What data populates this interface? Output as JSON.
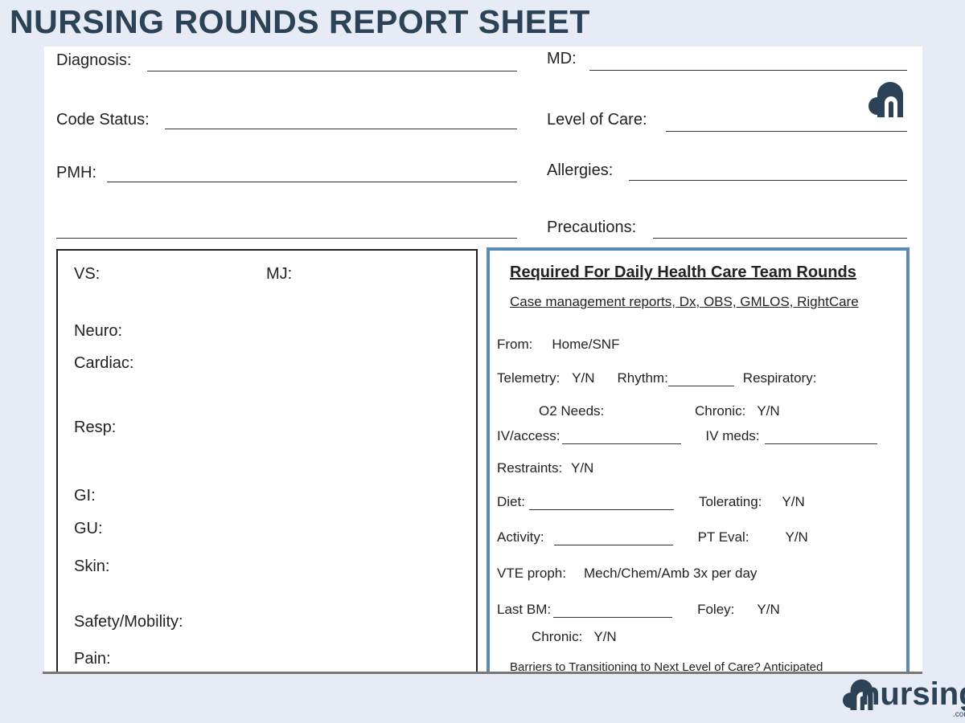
{
  "title": "NURSING ROUNDS REPORT SHEET",
  "header_fields": {
    "diagnosis": "Diagnosis:",
    "md": "MD:",
    "code_status": "Code Status:",
    "level_of_care": "Level of Care:",
    "pmh": "PMH:",
    "allergies": "Allergies:",
    "precautions": "Precautions:"
  },
  "assessment": {
    "vs": "VS:",
    "mj": "MJ:",
    "neuro": "Neuro:",
    "cardiac": "Cardiac:",
    "resp": "Resp:",
    "gi": "GI:",
    "gu": "GU:",
    "skin": "Skin:",
    "safety": "Safety/Mobility:",
    "pain": "Pain:"
  },
  "rounds": {
    "heading": "Required For Daily Health Care Team Rounds",
    "subheading": "Case management reports, Dx, OBS, GMLOS, RightCare",
    "from": "From:",
    "from_val": "Home/SNF",
    "telemetry": "Telemetry:",
    "yn": "Y/N",
    "rhythm": "Rhythm:",
    "respiratory": "Respiratory:",
    "o2": "O2 Needs:",
    "chronic": "Chronic:",
    "iv_access": "IV/access:",
    "iv_meds": "IV meds:",
    "restraints": "Restraints:",
    "diet": "Diet:",
    "tolerating": "Tolerating:",
    "activity": "Activity:",
    "pt_eval": "PT Eval:",
    "vte": "VTE proph:",
    "vte_val": "Mech/Chem/Amb 3x per day",
    "last_bm": "Last BM:",
    "foley": "Foley:",
    "barriers": "Barriers to Transitioning to Next Level of Care? Anticipated"
  },
  "brand": {
    "name": "nursing",
    "suffix": ".com"
  },
  "colors": {
    "title": "#2b4257",
    "box_border": "#5b8ab5",
    "background": "#e7ebf5"
  }
}
